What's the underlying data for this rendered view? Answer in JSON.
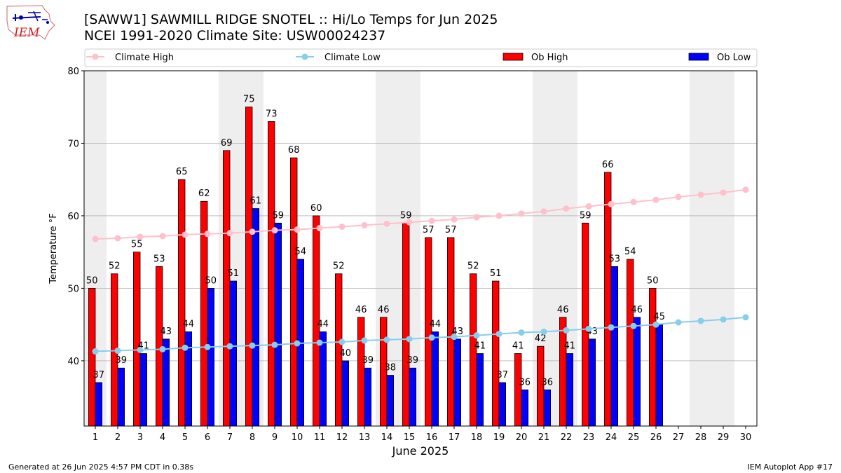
{
  "header": {
    "title_line1": "[SAWW1] SAWMILL RIDGE SNOTEL :: Hi/Lo Temps for Jun 2025",
    "title_line2": "NCEI 1991-2020 Climate Site: USW00024237",
    "logo_text": "IEM"
  },
  "footer": {
    "generated": "Generated at 26 Jun 2025 4:57 PM CDT in 0.38s",
    "app": "IEM Autoplot App #17"
  },
  "colors": {
    "ob_high": "#ff0000",
    "ob_low": "#0000ff",
    "climate_high": "#ffc0cb",
    "climate_low": "#87ceeb",
    "weekend_shade": "#eeeeee",
    "grid": "#b0b0b0"
  },
  "chart_data": {
    "type": "bar",
    "xlabel": "June 2025",
    "ylabel": "Temperature °F",
    "ylim": [
      31,
      80
    ],
    "yticks": [
      40,
      50,
      60,
      70,
      80
    ],
    "grid": "horizontal",
    "legend_position": "top",
    "categories": [
      "1",
      "2",
      "3",
      "4",
      "5",
      "6",
      "7",
      "8",
      "9",
      "10",
      "11",
      "12",
      "13",
      "14",
      "15",
      "16",
      "17",
      "18",
      "19",
      "20",
      "21",
      "22",
      "23",
      "24",
      "25",
      "26",
      "27",
      "28",
      "29",
      "30"
    ],
    "weekend_days": [
      1,
      7,
      8,
      14,
      15,
      21,
      22,
      28,
      29
    ],
    "series": [
      {
        "name": "Climate High",
        "kind": "line",
        "values": [
          56.8,
          56.9,
          57.1,
          57.2,
          57.4,
          57.5,
          57.6,
          57.8,
          58.0,
          58.1,
          58.3,
          58.5,
          58.7,
          58.9,
          59.1,
          59.3,
          59.5,
          59.8,
          60.0,
          60.3,
          60.6,
          61.0,
          61.3,
          61.6,
          61.9,
          62.2,
          62.6,
          62.9,
          63.2,
          63.6
        ]
      },
      {
        "name": "Climate Low",
        "kind": "line",
        "values": [
          41.3,
          41.4,
          41.5,
          41.6,
          41.8,
          41.9,
          42.0,
          42.1,
          42.2,
          42.4,
          42.5,
          42.6,
          42.8,
          42.9,
          43.0,
          43.2,
          43.3,
          43.5,
          43.7,
          43.9,
          44.0,
          44.2,
          44.4,
          44.6,
          44.8,
          45.0,
          45.3,
          45.5,
          45.7,
          46.0
        ]
      },
      {
        "name": "Ob High",
        "kind": "bar",
        "values": [
          50,
          52,
          55,
          53,
          65,
          62,
          69,
          75,
          73,
          68,
          60,
          52,
          46,
          46,
          59,
          57,
          57,
          52,
          51,
          41,
          42,
          46,
          59,
          66,
          54,
          50,
          null,
          null,
          null,
          null
        ]
      },
      {
        "name": "Ob Low",
        "kind": "bar",
        "values": [
          37,
          39,
          41,
          43,
          44,
          50,
          51,
          61,
          59,
          54,
          44,
          40,
          39,
          38,
          39,
          44,
          43,
          41,
          37,
          36,
          36,
          41,
          43,
          53,
          46,
          45,
          null,
          null,
          null,
          null
        ]
      }
    ]
  }
}
